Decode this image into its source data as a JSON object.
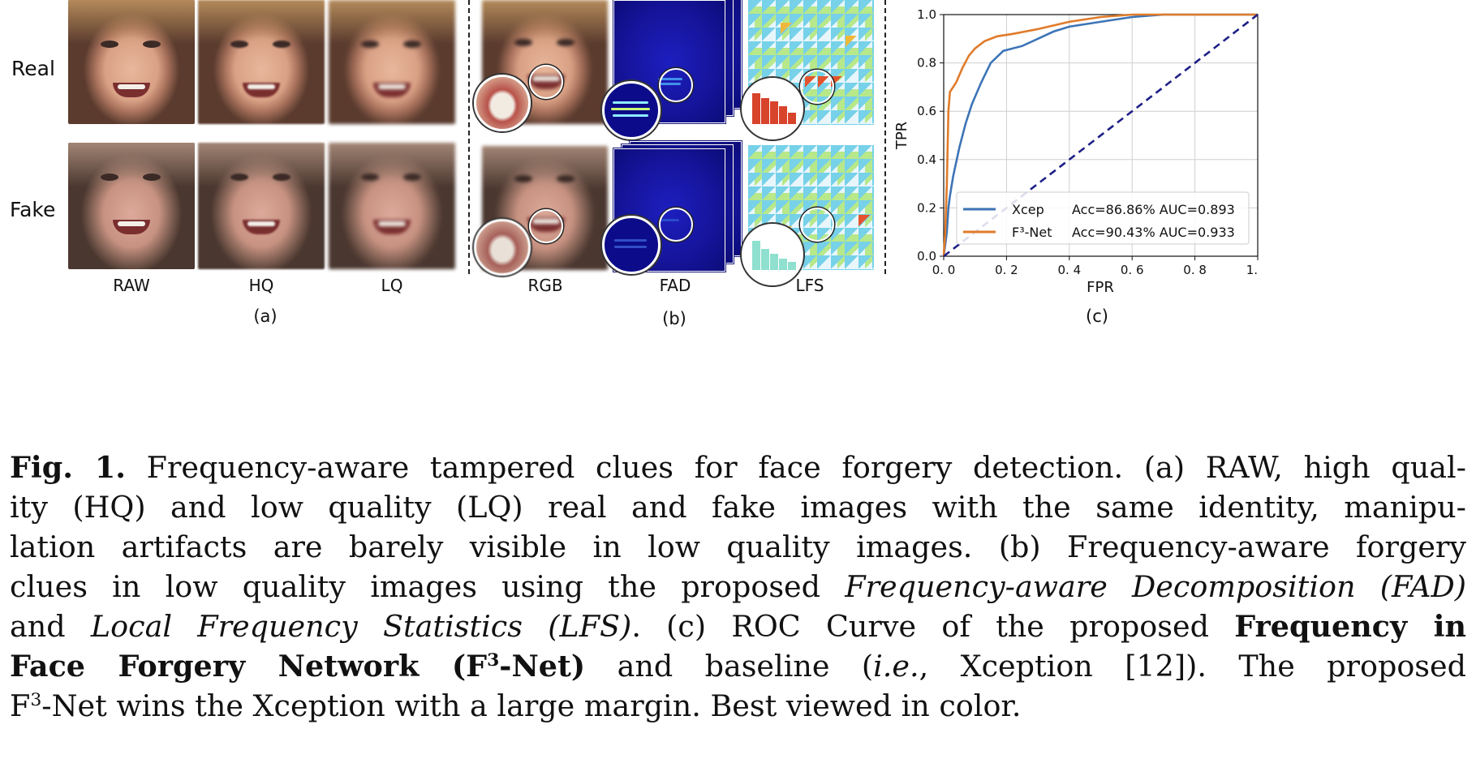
{
  "panel_a": {
    "row_labels": [
      "Real",
      "Fake"
    ],
    "column_labels": [
      "RAW",
      "HQ",
      "LQ"
    ],
    "label": "(a)"
  },
  "panel_b": {
    "column_labels": [
      "RGB",
      "FAD",
      "LFS"
    ],
    "label": "(b)"
  },
  "panel_c": {
    "label": "(c)"
  },
  "chart_data": {
    "type": "line",
    "xlabel": "FPR",
    "ylabel": "TPR",
    "xlim": [
      0.0,
      1.0
    ],
    "ylim": [
      0.0,
      1.0
    ],
    "xticks": [
      "0.0",
      "0.2",
      "0.4",
      "0.6",
      "0.8",
      "1.0"
    ],
    "yticks": [
      "0.0",
      "0.2",
      "0.4",
      "0.6",
      "0.8",
      "1.0"
    ],
    "grid": true,
    "legend_position": "bottom-right",
    "series": [
      {
        "name": "Xcep",
        "legend_stats": "Acc=86.86% AUC=0.893",
        "color": "#3d74b6",
        "points": [
          [
            0,
            0
          ],
          [
            0.01,
            0.1
          ],
          [
            0.015,
            0.2
          ],
          [
            0.02,
            0.25
          ],
          [
            0.03,
            0.33
          ],
          [
            0.05,
            0.45
          ],
          [
            0.07,
            0.55
          ],
          [
            0.09,
            0.63
          ],
          [
            0.12,
            0.72
          ],
          [
            0.15,
            0.8
          ],
          [
            0.19,
            0.85
          ],
          [
            0.25,
            0.87
          ],
          [
            0.3,
            0.9
          ],
          [
            0.35,
            0.93
          ],
          [
            0.4,
            0.95
          ],
          [
            0.5,
            0.97
          ],
          [
            0.6,
            0.99
          ],
          [
            0.7,
            1.0
          ],
          [
            1.0,
            1.0
          ]
        ]
      },
      {
        "name": "F³-Net",
        "legend_stats": "Acc=90.43% AUC=0.933",
        "color": "#e07b2a",
        "points": [
          [
            0,
            0
          ],
          [
            0.005,
            0.1
          ],
          [
            0.01,
            0.3
          ],
          [
            0.015,
            0.6
          ],
          [
            0.02,
            0.68
          ],
          [
            0.04,
            0.72
          ],
          [
            0.06,
            0.78
          ],
          [
            0.08,
            0.83
          ],
          [
            0.1,
            0.86
          ],
          [
            0.13,
            0.89
          ],
          [
            0.17,
            0.91
          ],
          [
            0.22,
            0.92
          ],
          [
            0.3,
            0.94
          ],
          [
            0.4,
            0.97
          ],
          [
            0.5,
            0.99
          ],
          [
            0.6,
            1.0
          ],
          [
            1.0,
            1.0
          ]
        ]
      },
      {
        "name": "",
        "style": "dashed",
        "color": "#1d1f86",
        "points": [
          [
            0,
            0
          ],
          [
            1,
            1
          ]
        ]
      }
    ]
  },
  "caption": {
    "fig_label": "Fig. 1.",
    "lines": [
      "Frequency-aware tampered clues for face forgery detection. (a) RAW, high qual-",
      "ity (HQ) and low quality (LQ) real and fake images with the same identity, manipu-",
      "lation artifacts are barely visible in low quality images. (b) Frequency-aware forgery",
      "clues in low quality images using the proposed",
      "Frequency-aware Decomposition (FAD)",
      "and",
      "Local Frequency Statistics (LFS)",
      ". (c) ROC Curve of the proposed",
      "Frequency in",
      "Face Forgery Network (F",
      "3",
      "-Net)",
      "and baseline (",
      "i.e.",
      ", Xception [12]). The proposed",
      "F",
      "3",
      "-Net wins the Xception with a large margin. Best viewed in color."
    ]
  },
  "colors": {
    "xcep": "#3d74b6",
    "f3net": "#e07b2a",
    "diagonal": "#1d1f86",
    "fad_bg": "#15149a",
    "lfs_hot": "#e4532d"
  }
}
